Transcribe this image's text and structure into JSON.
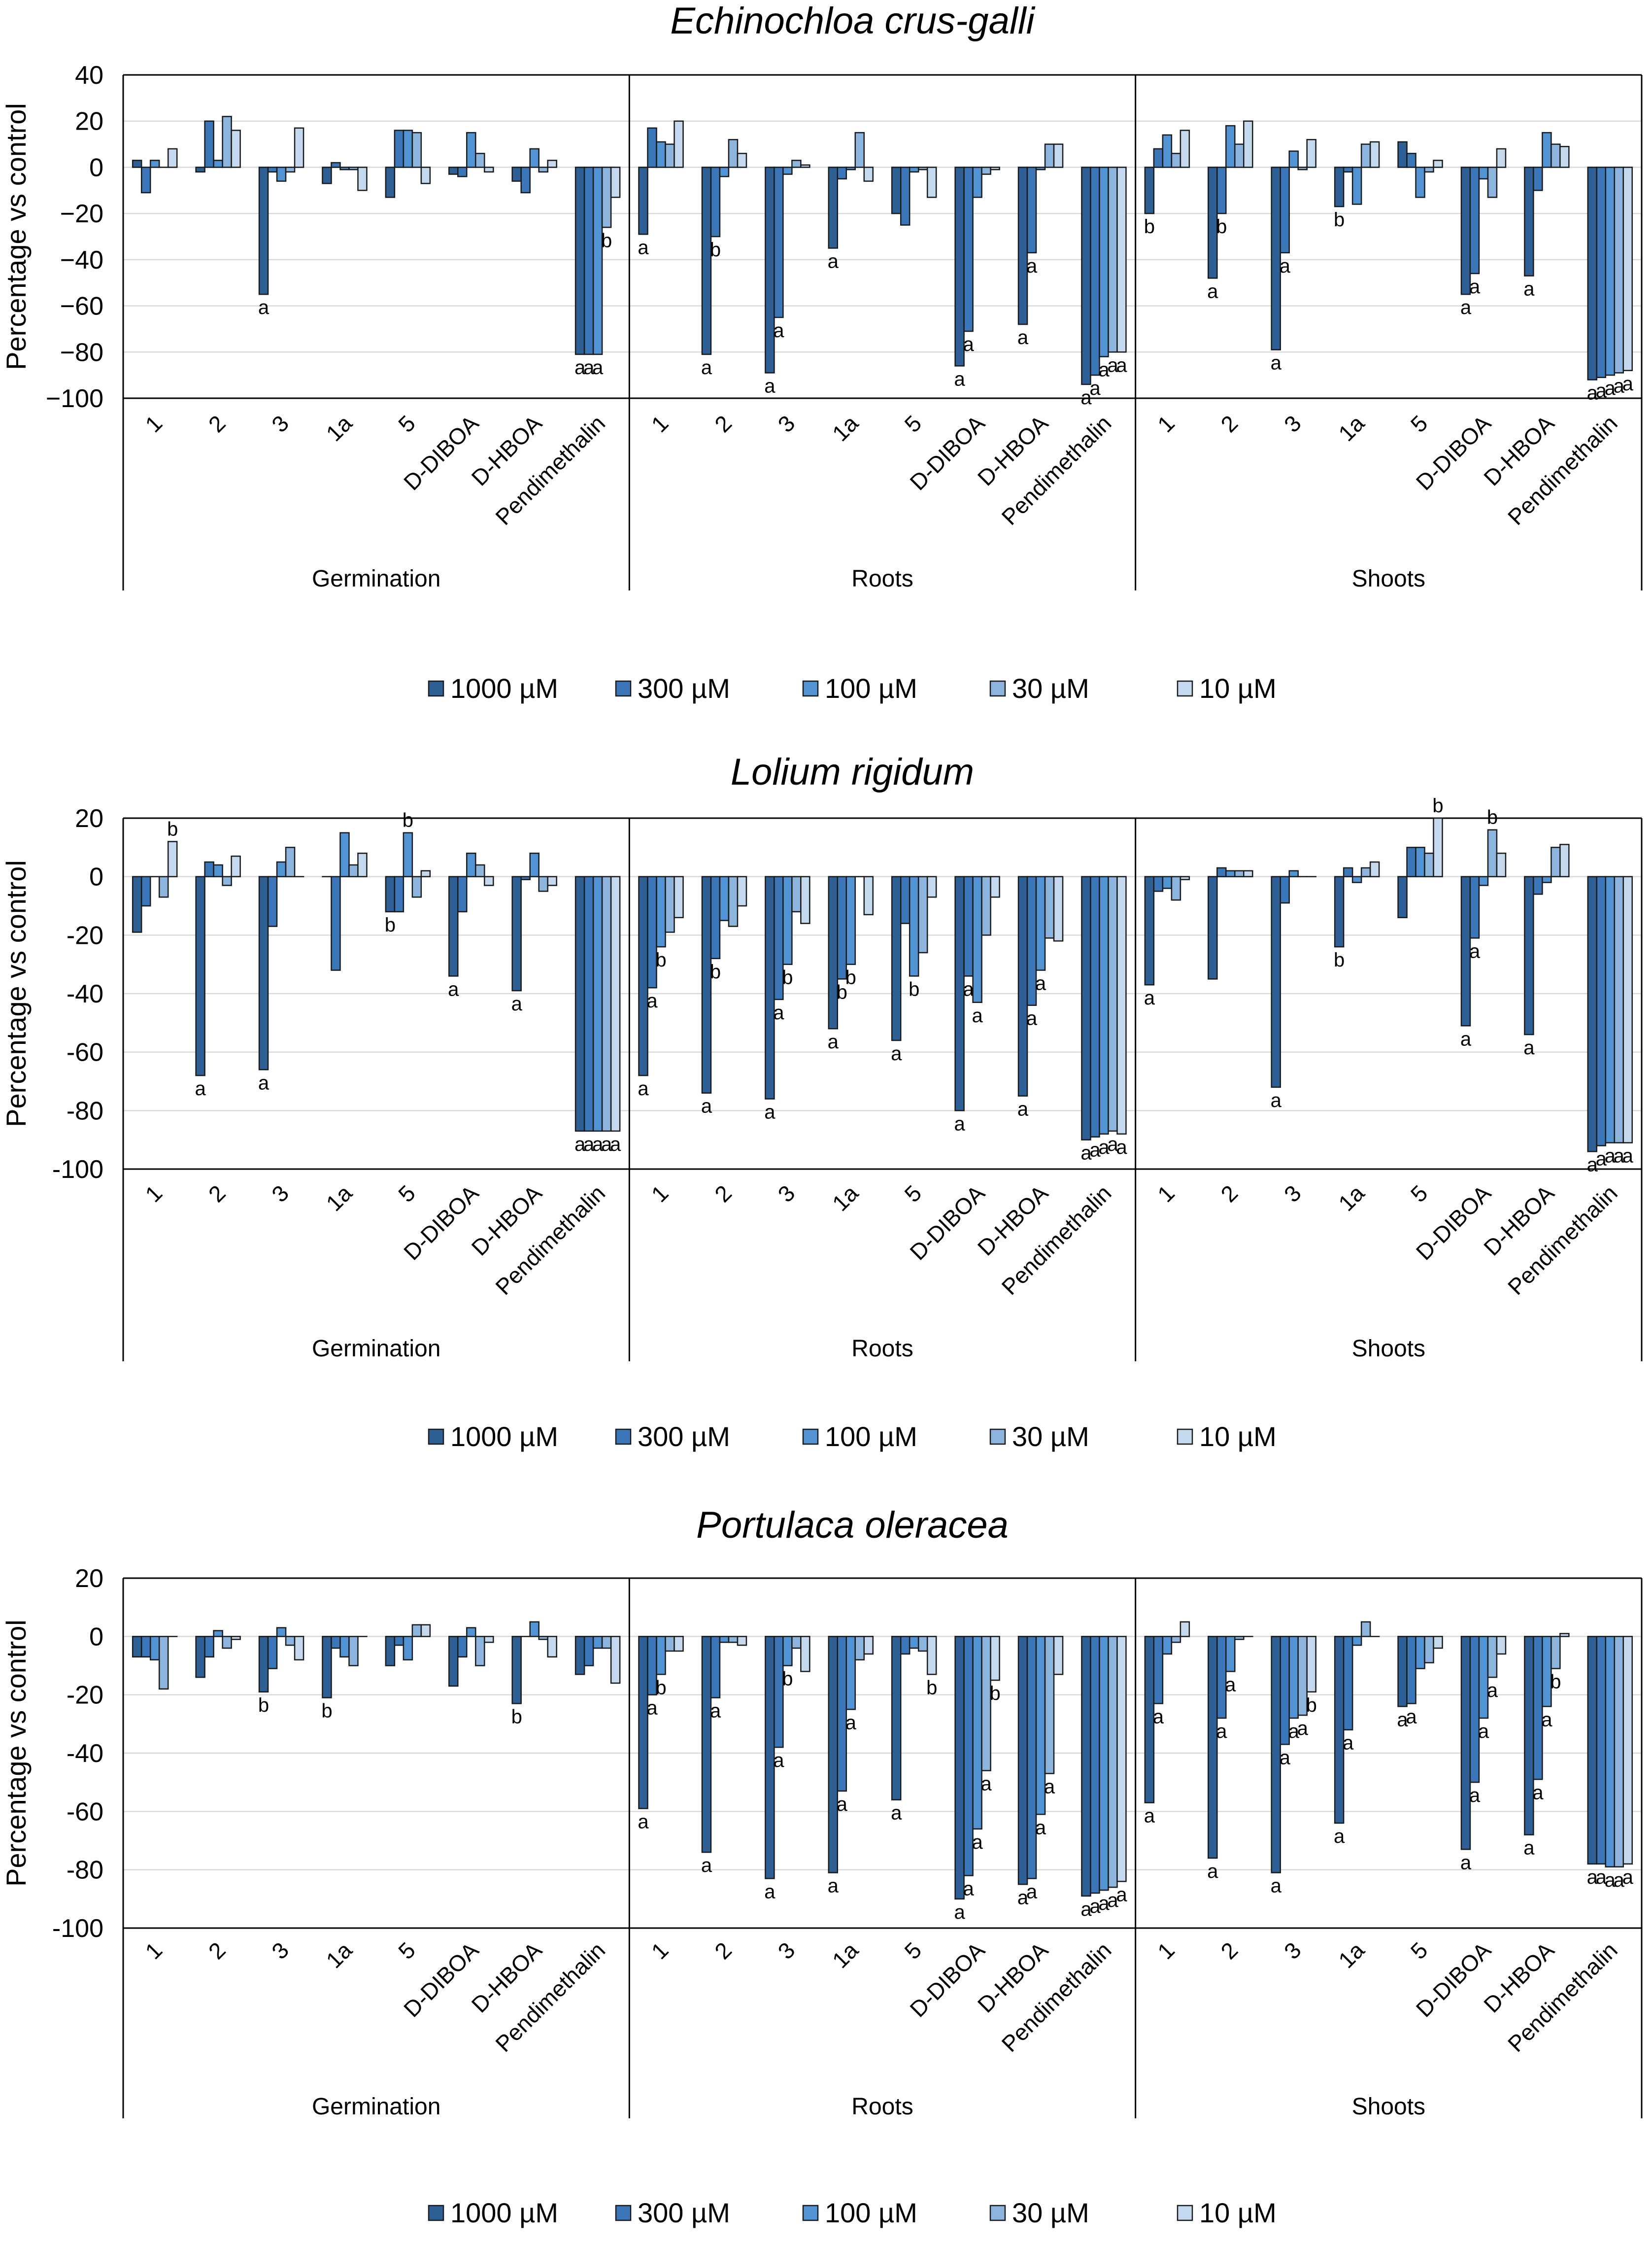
{
  "colors": {
    "1000": "#2e5f95",
    "300": "#3b77b8",
    "100": "#5294d3",
    "30": "#8cb4dc",
    "10": "#c4d8ee",
    "text": "#000000",
    "grid": "#d9d9d9"
  },
  "chart_data": [
    {
      "type": "bar",
      "title": "Echinochloa crus-galli",
      "ylabel": "Percentage vs control",
      "ylim": [
        -100,
        40
      ],
      "yticks": [
        40,
        20,
        0,
        -20,
        -40,
        -60,
        -80,
        -100
      ],
      "ytick_labels": [
        "40",
        "20",
        "0",
        "−20",
        "−40",
        "−60",
        "−80",
        "−100"
      ],
      "groups": [
        "Germination",
        "Roots",
        "Shoots"
      ],
      "categories": [
        "1",
        "2",
        "3",
        "1a",
        "5",
        "D-DIBOA",
        "D-HBOA",
        "Pendimethalin"
      ],
      "series_names": [
        "1000 µM",
        "300 µM",
        "100 µM",
        "30 µM",
        "10 µM"
      ],
      "values": [
        [
          [
            3,
            -11,
            3,
            0,
            8
          ],
          [
            -2,
            20,
            3,
            22,
            16
          ],
          [
            -55,
            -2,
            -6,
            -2,
            17
          ],
          [
            -7,
            2,
            -1,
            -1,
            -10
          ],
          [
            -13,
            16,
            16,
            15,
            -7
          ],
          [
            -3,
            -4,
            15,
            6,
            -2
          ],
          [
            -6,
            -11,
            8,
            -2,
            3
          ],
          [
            -81,
            -81,
            -81,
            -26,
            -13
          ]
        ],
        [
          [
            -29,
            17,
            11,
            10,
            20
          ],
          [
            -81,
            -30,
            -4,
            12,
            6
          ],
          [
            -89,
            -65,
            -3,
            3,
            1
          ],
          [
            -35,
            -5,
            -1,
            15,
            -6
          ],
          [
            -20,
            -25,
            -2,
            -1,
            -13
          ],
          [
            -86,
            -71,
            -13,
            -3,
            -1
          ],
          [
            -68,
            -37,
            -1,
            10,
            10
          ],
          [
            -94,
            -90,
            -82,
            -80,
            -80
          ]
        ],
        [
          [
            -20,
            8,
            14,
            6,
            16
          ],
          [
            -48,
            -20,
            18,
            10,
            20
          ],
          [
            -79,
            -37,
            7,
            -1,
            12
          ],
          [
            -17,
            -2,
            -16,
            10,
            11
          ],
          [
            11,
            6,
            -13,
            -2,
            3
          ],
          [
            -55,
            -46,
            -5,
            -13,
            8
          ],
          [
            -47,
            -10,
            15,
            10,
            9
          ],
          [
            -92,
            -91,
            -90,
            -89,
            -88
          ]
        ]
      ],
      "labels": [
        [
          [
            "",
            "",
            "",
            "",
            ""
          ],
          [
            "",
            "",
            "",
            "",
            ""
          ],
          [
            "a",
            "",
            "",
            "",
            ""
          ],
          [
            "",
            "",
            "",
            "",
            ""
          ],
          [
            "",
            "",
            "",
            "",
            ""
          ],
          [
            "",
            "",
            "",
            "",
            ""
          ],
          [
            "",
            "",
            "",
            "",
            ""
          ],
          [
            "a",
            "a",
            "a",
            "b",
            ""
          ]
        ],
        [
          [
            "a",
            "",
            "",
            "",
            ""
          ],
          [
            "a",
            "b",
            "",
            "",
            ""
          ],
          [
            "a",
            "a",
            "",
            "",
            ""
          ],
          [
            "a",
            "",
            "",
            "",
            ""
          ],
          [
            "",
            "",
            "",
            "",
            ""
          ],
          [
            "a",
            "a",
            "",
            "",
            ""
          ],
          [
            "a",
            "a",
            "",
            "",
            ""
          ],
          [
            "a",
            "a",
            "a",
            "a",
            "a"
          ]
        ],
        [
          [
            "b",
            "",
            "",
            "",
            ""
          ],
          [
            "a",
            "b",
            "",
            "",
            ""
          ],
          [
            "a",
            "a",
            "",
            "",
            ""
          ],
          [
            "b",
            "",
            "",
            "",
            ""
          ],
          [
            "",
            "",
            "",
            "",
            ""
          ],
          [
            "a",
            "a",
            "",
            "",
            ""
          ],
          [
            "a",
            "",
            "",
            "",
            ""
          ],
          [
            "a",
            "a",
            "a",
            "a",
            "a"
          ]
        ]
      ]
    },
    {
      "type": "bar",
      "title": "Lolium rigidum",
      "ylabel": "Percentage vs control",
      "ylim": [
        -100,
        20
      ],
      "yticks": [
        20,
        0,
        -20,
        -40,
        -60,
        -80,
        -100
      ],
      "ytick_labels": [
        "20",
        "0",
        "-20",
        "-40",
        "-60",
        "-80",
        "-100"
      ],
      "groups": [
        "Germination",
        "Roots",
        "Shoots"
      ],
      "categories": [
        "1",
        "2",
        "3",
        "1a",
        "5",
        "D-DIBOA",
        "D-HBOA",
        "Pendimethalin"
      ],
      "series_names": [
        "1000 µM",
        "300 µM",
        "100 µM",
        "30 µM",
        "10 µM"
      ],
      "values": [
        [
          [
            -19,
            -10,
            0,
            -7,
            12
          ],
          [
            -68,
            5,
            4,
            -3,
            7
          ],
          [
            -66,
            -17,
            5,
            10,
            0
          ],
          [
            0,
            -32,
            15,
            4,
            8
          ],
          [
            -12,
            -12,
            15,
            -7,
            2
          ],
          [
            -34,
            -12,
            8,
            4,
            -3
          ],
          [
            -39,
            -1,
            8,
            -5,
            -3
          ],
          [
            -87,
            -87,
            -87,
            -87,
            -87
          ]
        ],
        [
          [
            -68,
            -38,
            -24,
            -19,
            -14
          ],
          [
            -74,
            -28,
            -15,
            -17,
            -10
          ],
          [
            -76,
            -42,
            -30,
            -12,
            -16
          ],
          [
            -52,
            -35,
            -30,
            0,
            -13
          ],
          [
            -56,
            -16,
            -34,
            -26,
            -7
          ],
          [
            -80,
            -34,
            -43,
            -20,
            -7
          ],
          [
            -75,
            -44,
            -32,
            -21,
            -22
          ],
          [
            -90,
            -89,
            -88,
            -87,
            -88
          ]
        ],
        [
          [
            -37,
            -5,
            -4,
            -8,
            -1
          ],
          [
            -35,
            3,
            2,
            2,
            2
          ],
          [
            -72,
            -9,
            2,
            0,
            0
          ],
          [
            -24,
            3,
            -2,
            3,
            5
          ],
          [
            -14,
            10,
            10,
            8,
            20
          ],
          [
            -51,
            -21,
            -3,
            16,
            8
          ],
          [
            -54,
            -6,
            -2,
            10,
            11
          ],
          [
            -94,
            -92,
            -91,
            -91,
            -91
          ]
        ]
      ],
      "labels": [
        [
          [
            "",
            "",
            "",
            "",
            "b"
          ],
          [
            "a",
            "",
            "",
            "",
            ""
          ],
          [
            "a",
            "",
            "",
            "",
            ""
          ],
          [
            "",
            "",
            "",
            "",
            ""
          ],
          [
            "b",
            "",
            "b",
            "",
            ""
          ],
          [
            "a",
            "",
            "",
            "",
            ""
          ],
          [
            "a",
            "",
            "",
            "",
            ""
          ],
          [
            "a",
            "a",
            "a",
            "a",
            "a"
          ]
        ],
        [
          [
            "a",
            "a",
            "b",
            "",
            ""
          ],
          [
            "a",
            "b",
            "",
            "",
            ""
          ],
          [
            "a",
            "a",
            "b",
            "",
            ""
          ],
          [
            "a",
            "b",
            "b",
            "",
            ""
          ],
          [
            "a",
            "",
            "b",
            "",
            ""
          ],
          [
            "a",
            "a",
            "a",
            "",
            ""
          ],
          [
            "a",
            "a",
            "a",
            "",
            ""
          ],
          [
            "a",
            "a",
            "a",
            "a",
            "a"
          ]
        ],
        [
          [
            "a",
            "",
            "",
            "",
            ""
          ],
          [
            "",
            "",
            "",
            "",
            ""
          ],
          [
            "a",
            "",
            "",
            "",
            ""
          ],
          [
            "b",
            "",
            "",
            "",
            ""
          ],
          [
            "",
            "",
            "",
            "",
            "b"
          ],
          [
            "a",
            "a",
            "",
            "b",
            ""
          ],
          [
            "a",
            "",
            "",
            "",
            ""
          ],
          [
            "a",
            "a",
            "a",
            "a",
            "a"
          ]
        ]
      ]
    },
    {
      "type": "bar",
      "title": "Portulaca oleracea",
      "ylabel": "Percentage vs control",
      "ylim": [
        -100,
        20
      ],
      "yticks": [
        20,
        0,
        -20,
        -40,
        -60,
        -80,
        -100
      ],
      "ytick_labels": [
        "20",
        "0",
        "-20",
        "-40",
        "-60",
        "-80",
        "-100"
      ],
      "groups": [
        "Germination",
        "Roots",
        "Shoots"
      ],
      "categories": [
        "1",
        "2",
        "3",
        "1a",
        "5",
        "D-DIBOA",
        "D-HBOA",
        "Pendimethalin"
      ],
      "series_names": [
        "1000 µM",
        "300 µM",
        "100 µM",
        "30 µM",
        "10 µM"
      ],
      "values": [
        [
          [
            -7,
            -7,
            -8,
            -18,
            0
          ],
          [
            -14,
            -7,
            2,
            -4,
            -1
          ],
          [
            -19,
            -11,
            3,
            -3,
            -8
          ],
          [
            -21,
            -4,
            -7,
            -10,
            0
          ],
          [
            -10,
            -3,
            -8,
            4,
            4
          ],
          [
            -17,
            -7,
            3,
            -10,
            -2
          ],
          [
            -23,
            0,
            5,
            -1,
            -7
          ],
          [
            -13,
            -10,
            -4,
            -4,
            -16
          ]
        ],
        [
          [
            -59,
            -20,
            -13,
            -5,
            -5
          ],
          [
            -74,
            -21,
            -2,
            -2,
            -3
          ],
          [
            -83,
            -38,
            -10,
            -4,
            -12
          ],
          [
            -81,
            -53,
            -25,
            -8,
            -6
          ],
          [
            -56,
            -6,
            -4,
            -5,
            -13
          ],
          [
            -90,
            -82,
            -66,
            -46,
            -15
          ],
          [
            -85,
            -83,
            -61,
            -47,
            -13
          ],
          [
            -89,
            -88,
            -87,
            -86,
            -84
          ]
        ],
        [
          [
            -57,
            -23,
            -6,
            -2,
            5
          ],
          [
            -76,
            -28,
            -12,
            -1,
            0
          ],
          [
            -81,
            -37,
            -28,
            -27,
            -19
          ],
          [
            -64,
            -32,
            -3,
            5,
            0
          ],
          [
            -24,
            -23,
            -11,
            -9,
            -4
          ],
          [
            -73,
            -50,
            -28,
            -14,
            -6
          ],
          [
            -68,
            -49,
            -24,
            -11,
            1
          ],
          [
            -78,
            -78,
            -79,
            -79,
            -78
          ]
        ]
      ],
      "labels": [
        [
          [
            "",
            "",
            "",
            "",
            ""
          ],
          [
            "",
            "",
            "",
            "",
            ""
          ],
          [
            "b",
            "",
            "",
            "",
            ""
          ],
          [
            "b",
            "",
            "",
            "",
            ""
          ],
          [
            "",
            "",
            "",
            "",
            ""
          ],
          [
            "",
            "",
            "",
            "",
            ""
          ],
          [
            "b",
            "",
            "",
            "",
            ""
          ],
          [
            "",
            "",
            "",
            "",
            ""
          ]
        ],
        [
          [
            "a",
            "a",
            "b",
            "",
            ""
          ],
          [
            "a",
            "a",
            "",
            "",
            ""
          ],
          [
            "a",
            "a",
            "b",
            "",
            ""
          ],
          [
            "a",
            "a",
            "a",
            "",
            ""
          ],
          [
            "a",
            "",
            "",
            "",
            "b"
          ],
          [
            "a",
            "a",
            "a",
            "a",
            "b"
          ],
          [
            "a",
            "a",
            "a",
            "a",
            ""
          ],
          [
            "a",
            "a",
            "a",
            "a",
            "a"
          ]
        ],
        [
          [
            "a",
            "a",
            "",
            "",
            ""
          ],
          [
            "a",
            "a",
            "a",
            "",
            ""
          ],
          [
            "a",
            "a",
            "a",
            "a",
            "b"
          ],
          [
            "a",
            "a",
            "",
            "",
            ""
          ],
          [
            "a",
            "a",
            "",
            "",
            ""
          ],
          [
            "a",
            "a",
            "a",
            "a",
            ""
          ],
          [
            "a",
            "a",
            "a",
            "b",
            ""
          ],
          [
            "a",
            "a",
            "a",
            "a",
            "a"
          ]
        ]
      ]
    }
  ]
}
